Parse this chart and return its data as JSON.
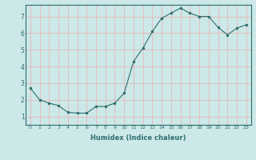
{
  "x": [
    0,
    1,
    2,
    3,
    4,
    5,
    6,
    7,
    8,
    9,
    10,
    11,
    12,
    13,
    14,
    15,
    16,
    17,
    18,
    19,
    20,
    21,
    22,
    23
  ],
  "y": [
    2.7,
    2.0,
    1.8,
    1.65,
    1.25,
    1.2,
    1.2,
    1.6,
    1.6,
    1.8,
    2.4,
    4.3,
    5.1,
    6.1,
    6.9,
    7.2,
    7.5,
    7.2,
    7.0,
    7.0,
    6.35,
    5.9,
    6.3,
    6.5
  ],
  "xlabel": "Humidex (Indice chaleur)",
  "xlim": [
    -0.5,
    23.5
  ],
  "ylim": [
    0.5,
    7.7
  ],
  "yticks": [
    1,
    2,
    3,
    4,
    5,
    6,
    7
  ],
  "xticks": [
    0,
    1,
    2,
    3,
    4,
    5,
    6,
    7,
    8,
    9,
    10,
    11,
    12,
    13,
    14,
    15,
    16,
    17,
    18,
    19,
    20,
    21,
    22,
    23
  ],
  "line_color": "#2d6e6e",
  "marker_color": "#2d6e6e",
  "bg_color": "#cce8e8",
  "grid_color": "#e8b4b8",
  "fig_bg_color": "#cce8e8"
}
